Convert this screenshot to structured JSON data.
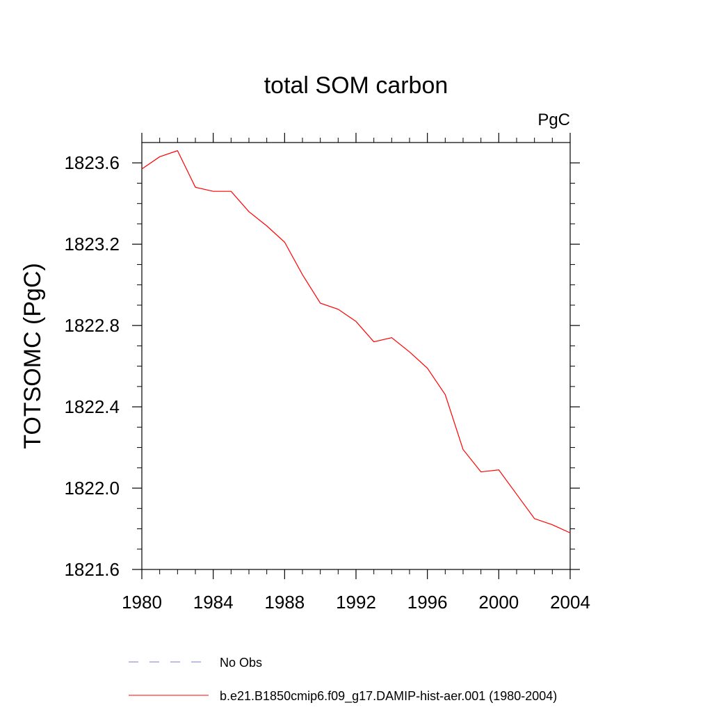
{
  "chart_data": {
    "type": "line",
    "title": "total SOM carbon",
    "units": "PgC",
    "xlabel": "",
    "ylabel": "TOTSOMC  (PgC)",
    "xlim": [
      1980,
      2004
    ],
    "ylim": [
      1821.6,
      1823.7
    ],
    "x_ticks": [
      1980,
      1984,
      1988,
      1992,
      1996,
      2000,
      2004
    ],
    "x_tick_labels": [
      "1980",
      "1984",
      "1988",
      "1992",
      "1996",
      "2000",
      "2004"
    ],
    "y_ticks": [
      1821.6,
      1822.0,
      1822.4,
      1822.8,
      1823.2,
      1823.6
    ],
    "y_tick_labels": [
      "1821.6",
      "1822.0",
      "1822.4",
      "1822.8",
      "1823.2",
      "1823.6"
    ],
    "grid": false,
    "legend_position": "bottom",
    "series": [
      {
        "name": "b.e21.B1850cmip6.f09_g17.DAMIP-hist-aer.001 (1980-2004)",
        "color": "#ff0000",
        "style": "solid",
        "x": [
          1980,
          1981,
          1982,
          1983,
          1984,
          1985,
          1986,
          1987,
          1988,
          1989,
          1990,
          1991,
          1992,
          1993,
          1994,
          1995,
          1996,
          1997,
          1998,
          1999,
          2000,
          2001,
          2002,
          2003,
          2004
        ],
        "y": [
          1823.57,
          1823.63,
          1823.66,
          1823.48,
          1823.46,
          1823.46,
          1823.36,
          1823.29,
          1823.21,
          1823.05,
          1822.91,
          1822.88,
          1822.82,
          1822.72,
          1822.74,
          1822.67,
          1822.59,
          1822.46,
          1822.19,
          1822.08,
          1822.09,
          1821.97,
          1821.85,
          1821.82,
          1821.78
        ]
      }
    ],
    "legend": [
      {
        "label": "No Obs",
        "color": "#7b7bd6",
        "style": "dashed"
      },
      {
        "label": "b.e21.B1850cmip6.f09_g17.DAMIP-hist-aer.001 (1980-2004)",
        "color": "#ff0000",
        "style": "solid"
      }
    ]
  }
}
